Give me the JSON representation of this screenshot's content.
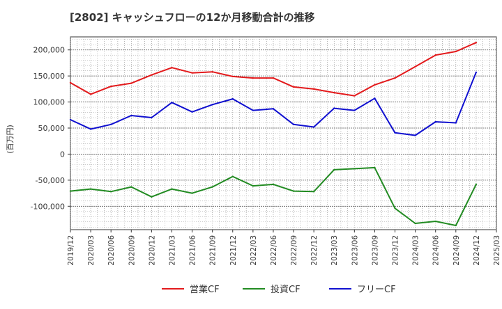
{
  "chart_data": {
    "type": "line",
    "title": "[2802]  キャッシュフローの12か月移動合計の推移",
    "ylabel": "(百万円)",
    "xlabel": "",
    "ylim": [
      -145000,
      225000
    ],
    "y_ticks": [
      -100000,
      -50000,
      0,
      50000,
      100000,
      150000,
      200000
    ],
    "y_tick_labels": [
      "-100,000",
      "-50,000",
      "0",
      "50,000",
      "100,000",
      "150,000",
      "200,000"
    ],
    "x_tick_labels": [
      "2019/12",
      "2020/03",
      "2020/06",
      "2020/09",
      "2020/12",
      "2021/03",
      "2021/06",
      "2021/09",
      "2021/12",
      "2022/03",
      "2022/06",
      "2022/09",
      "2022/12",
      "2023/03",
      "2023/06",
      "2023/09",
      "2023/12",
      "2024/03",
      "2024/06",
      "2024/09",
      "2024/12",
      "2025/03"
    ],
    "x": [
      "2019/12",
      "2020/03",
      "2020/06",
      "2020/09",
      "2020/12",
      "2021/03",
      "2021/06",
      "2021/09",
      "2021/12",
      "2022/03",
      "2022/06",
      "2022/09",
      "2022/12",
      "2023/03",
      "2023/06",
      "2023/09",
      "2023/12",
      "2024/03",
      "2024/06",
      "2024/09",
      "2024/12"
    ],
    "grid": true,
    "legend_position": "bottom",
    "series": [
      {
        "name": "営業CF",
        "color": "#e31a1c",
        "values": [
          137000,
          115000,
          130000,
          136000,
          152000,
          166000,
          156000,
          158000,
          149000,
          146000,
          146000,
          129000,
          125000,
          118000,
          112000,
          133000,
          146000,
          168000,
          190000,
          197000,
          214000
        ]
      },
      {
        "name": "投資CF",
        "color": "#228b22",
        "values": [
          -71000,
          -67000,
          -72000,
          -63000,
          -82000,
          -67000,
          -75000,
          -63000,
          -43000,
          -61000,
          -58000,
          -71000,
          -72000,
          -30000,
          -28000,
          -26000,
          -104000,
          -133000,
          -129000,
          -137000,
          -58000
        ]
      },
      {
        "name": "フリーCF",
        "color": "#1010d0",
        "values": [
          66000,
          48000,
          57000,
          74000,
          70000,
          99000,
          81000,
          95000,
          106000,
          84000,
          87000,
          57000,
          52000,
          88000,
          84000,
          107000,
          41000,
          36000,
          62000,
          60000,
          157000
        ]
      }
    ]
  }
}
